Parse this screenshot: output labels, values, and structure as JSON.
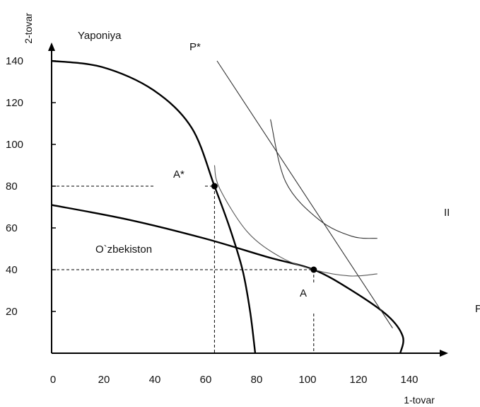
{
  "chart_data": {
    "type": "line",
    "title": "",
    "xlabel": "1-tovar",
    "ylabel": "2-tovar",
    "xlim": [
      0,
      150
    ],
    "ylim": [
      0,
      145
    ],
    "x_ticks": [
      0,
      20,
      40,
      60,
      80,
      100,
      120,
      140
    ],
    "x_tick_labels": [
      "0",
      "20",
      "40",
      "60",
      "80",
      "100",
      "120",
      "140"
    ],
    "y_ticks": [
      20,
      40,
      60,
      80,
      100,
      120,
      140
    ],
    "y_tick_labels": [
      "20",
      "40",
      "60",
      "80",
      "100",
      "120",
      "140"
    ],
    "grid": false,
    "series": [
      {
        "name": "Yaponiya",
        "points": [
          [
            0,
            140
          ],
          [
            20,
            137
          ],
          [
            40,
            126
          ],
          [
            55,
            108
          ],
          [
            64,
            80
          ],
          [
            70,
            60
          ],
          [
            75,
            40
          ],
          [
            78,
            20
          ],
          [
            80,
            0
          ]
        ]
      },
      {
        "name": "O`zbekiston",
        "points": [
          [
            0,
            71
          ],
          [
            30,
            64
          ],
          [
            60,
            55
          ],
          [
            85,
            46
          ],
          [
            103,
            40
          ],
          [
            118,
            30
          ],
          [
            132,
            18
          ],
          [
            138,
            8
          ],
          [
            137,
            0
          ]
        ]
      },
      {
        "name": "",
        "points": [
          [
            65,
            140
          ],
          [
            100,
            50
          ],
          [
            134,
            12
          ]
        ]
      },
      {
        "name": "",
        "points": [
          [
            86,
            112
          ],
          [
            92,
            82
          ],
          [
            105,
            64
          ],
          [
            118,
            56
          ],
          [
            128,
            55
          ]
        ]
      },
      {
        "name": "",
        "points": [
          [
            64,
            90
          ],
          [
            66,
            79
          ],
          [
            77,
            58
          ],
          [
            90,
            46
          ],
          [
            103,
            40
          ],
          [
            117,
            37
          ],
          [
            128,
            38
          ]
        ]
      }
    ],
    "points": [
      {
        "label": "A*",
        "x": 64,
        "y": 80
      },
      {
        "label": "A",
        "x": 103,
        "y": 40
      }
    ],
    "annotations": {
      "yaponiya": "Yaponiya",
      "uzbekiston": "O`zbekiston",
      "p_star": "P*",
      "a_star": "A*",
      "a": "A",
      "ii": "II",
      "p": "P"
    }
  }
}
